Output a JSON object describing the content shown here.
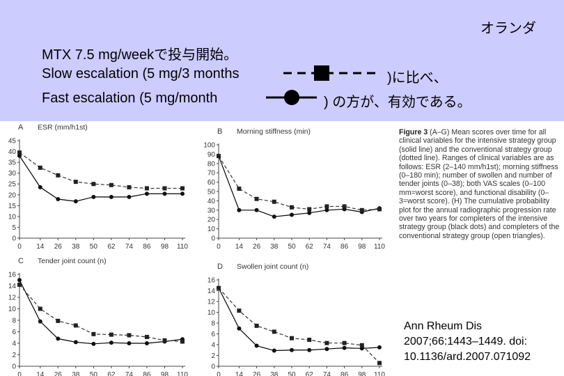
{
  "header": {
    "country": "オランダ",
    "line1": "MTX 7.5 mg/weekで投与開始。",
    "line2": "Slow escalation (5 mg/3 months",
    "line2_tail": ")に比べ、",
    "line3": "Fast escalation (5 mg/month",
    "line3_tail": ") の方が、有効である。"
  },
  "caption": {
    "label": "Figure 3",
    "text": "(A–G) Mean scores over time for all clinical variables for the intensive strategy group (solid line) and the conventional strategy group (dotted line). Ranges of clinical variables are as follows: ESR (2–140 mm/h1st); morning stiffness (0–180 min); number of swollen and number of tender joints (0–38); both VAS scales (0–100 mm=worst score), and functional disability (0–3=worst score). (H) The cumulative probability plot for the annual radiographic progression rate over two years for completers of the intensive strategy group (black dots) and completers of the conventional strategy group (open triangles)."
  },
  "citation": {
    "line1": "Ann Rheum Dis",
    "line2": "2007;66:1443–1449. doi:",
    "line3": "10.1136/ard.2007.071092"
  },
  "colors": {
    "banner": "#ccccff",
    "solid": "#000000",
    "dashed": "#333333"
  },
  "chart_data": [
    {
      "panel": "A",
      "title": "ESR (mm/h1st)",
      "type": "line",
      "x": [
        0,
        14,
        26,
        38,
        50,
        62,
        74,
        86,
        98,
        110
      ],
      "ylim": [
        0,
        45
      ],
      "yticks": [
        0,
        5,
        10,
        15,
        20,
        25,
        30,
        35,
        40,
        45
      ],
      "series": [
        {
          "style": "solid",
          "values": [
            38,
            23.5,
            18,
            17,
            19,
            19,
            19,
            20.5,
            20.5,
            20.5
          ]
        },
        {
          "style": "dashed",
          "values": [
            39.5,
            32.5,
            29,
            26,
            25,
            24.5,
            23.5,
            23,
            23,
            23
          ]
        }
      ]
    },
    {
      "panel": "B",
      "title": "Morning stiffness (min)",
      "type": "line",
      "x": [
        0,
        14,
        26,
        38,
        50,
        62,
        74,
        86,
        98,
        110
      ],
      "ylim": [
        0,
        100
      ],
      "yticks": [
        0,
        10,
        20,
        30,
        40,
        50,
        60,
        70,
        80,
        90,
        100
      ],
      "series": [
        {
          "style": "solid",
          "values": [
            88,
            30,
            30,
            23,
            25,
            27,
            30,
            31,
            28,
            32
          ]
        },
        {
          "style": "dashed",
          "values": [
            88,
            53,
            42,
            39,
            33,
            31,
            34,
            34,
            30,
            31
          ]
        }
      ]
    },
    {
      "panel": "C",
      "title": "Tender joint count (n)",
      "type": "line",
      "x": [
        0,
        14,
        26,
        38,
        50,
        62,
        74,
        86,
        98,
        110
      ],
      "ylim": [
        0,
        16
      ],
      "yticks": [
        0,
        2,
        4,
        6,
        8,
        10,
        12,
        14,
        16
      ],
      "series": [
        {
          "style": "solid",
          "values": [
            15,
            7.8,
            4.8,
            4.2,
            3.9,
            4.1,
            4.0,
            4.0,
            4.3,
            4.7
          ]
        },
        {
          "style": "dashed",
          "values": [
            14.2,
            10,
            7.9,
            7.1,
            5.6,
            5.5,
            5.4,
            5.1,
            4.5,
            4.3
          ]
        }
      ]
    },
    {
      "panel": "D",
      "title": "Swollen joint count (n)",
      "type": "line",
      "x": [
        0,
        14,
        26,
        38,
        50,
        62,
        74,
        86,
        98,
        110
      ],
      "ylim": [
        0,
        16
      ],
      "yticks": [
        0,
        2,
        4,
        6,
        8,
        10,
        12,
        14,
        16
      ],
      "series": [
        {
          "style": "solid",
          "values": [
            14.5,
            7.0,
            3.8,
            2.9,
            3.0,
            3.0,
            3.2,
            3.4,
            3.3,
            3.5
          ]
        },
        {
          "style": "dashed",
          "values": [
            14.5,
            10.3,
            7.5,
            6.4,
            5.2,
            4.9,
            4.3,
            4.3,
            3.9,
            0.6
          ]
        }
      ]
    }
  ]
}
